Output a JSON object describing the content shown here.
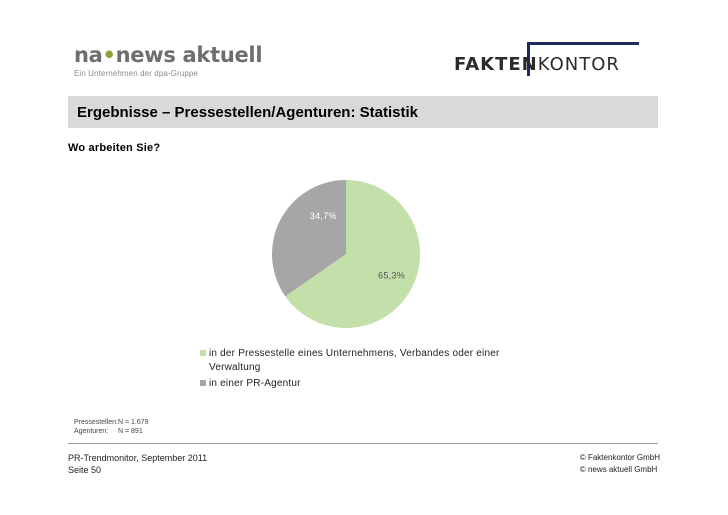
{
  "header": {
    "logo_left": {
      "brand_prefix": "na",
      "brand_dot": "•",
      "brand_rest": "news aktuell",
      "tagline": "Ein Unternehmen der dpa-Gruppe"
    },
    "logo_right": {
      "bold": "FAKTEN",
      "light": "KONTOR"
    },
    "title": "Ergebnisse – Pressestellen/Agenturen: Statistik"
  },
  "question": "Wo arbeiten Sie?",
  "chart_data": {
    "type": "pie",
    "slices": [
      {
        "label": "in der Pressestelle eines Unternehmens, Verbandes oder einer Verwaltung",
        "value": 65.3,
        "display": "65,3%",
        "color": "#c3dfaa"
      },
      {
        "label": "in einer PR-Agentur",
        "value": 34.7,
        "display": "34,7%",
        "color": "#a6a6a6"
      }
    ],
    "legend_position": "bottom"
  },
  "legend": {
    "item1_line1": "in der Pressestelle eines Unternehmens, Verbandes oder einer",
    "item1_line2": "Verwaltung",
    "item2": "in einer PR-Agentur"
  },
  "sample": {
    "row1_label": "Pressestellen:",
    "row1_value": "N = 1.679",
    "row2_label": "Agenturen:",
    "row2_value": "N = 891"
  },
  "footer": {
    "left_line1": "PR-Trendmonitor, September 2011",
    "left_line2": "Seite 50",
    "right_line1": "© Faktenkontor GmbH",
    "right_line2": "© news aktuell GmbH"
  }
}
